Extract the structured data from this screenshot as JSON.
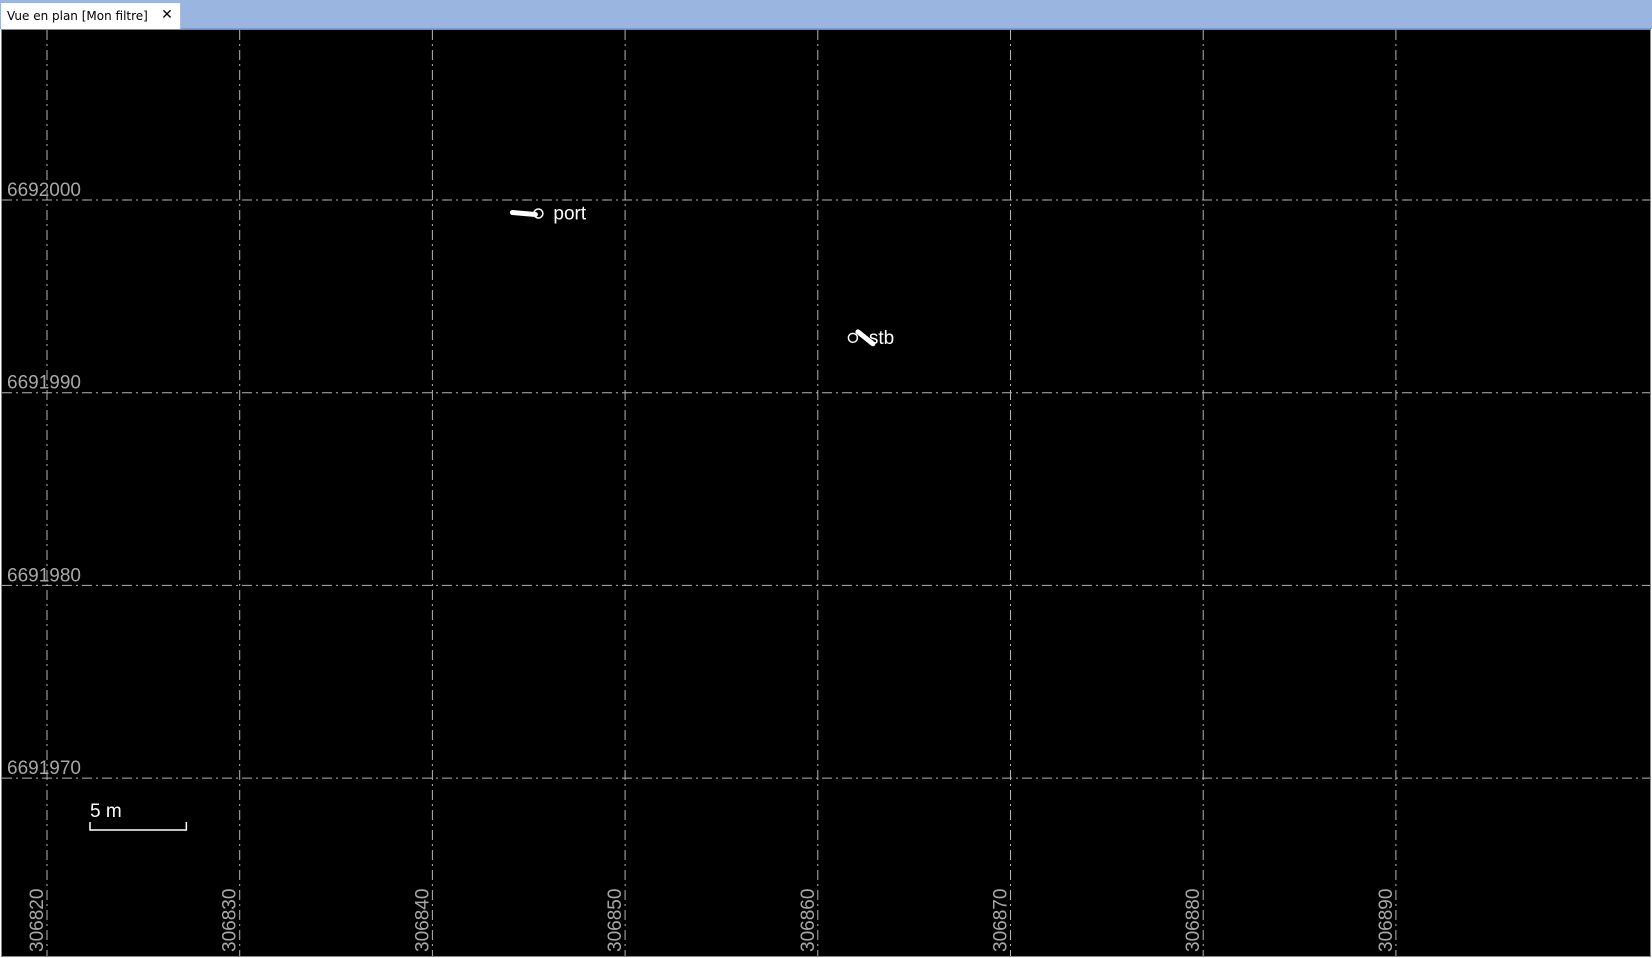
{
  "window": {
    "tab_title": "Vue en plan [Mon filtre]",
    "close_glyph": "✕",
    "close_icon": "close-icon"
  },
  "plan_view": {
    "background_color": "#000000",
    "grid_color": "#b5b5b5",
    "grid_style": "dash-dot",
    "x_ticks": [
      "306820",
      "306830",
      "306840",
      "306850",
      "306860",
      "306870",
      "306880",
      "306890"
    ],
    "y_ticks": [
      "6692000",
      "6691990",
      "6691980",
      "6691970"
    ],
    "objects": [
      {
        "label": "port",
        "easting": 306845.5,
        "northing": 6691999.3
      },
      {
        "label": "stb",
        "easting": 306862.6,
        "northing": 6691992.9
      }
    ],
    "scale_bar": {
      "label": "5 m"
    }
  }
}
